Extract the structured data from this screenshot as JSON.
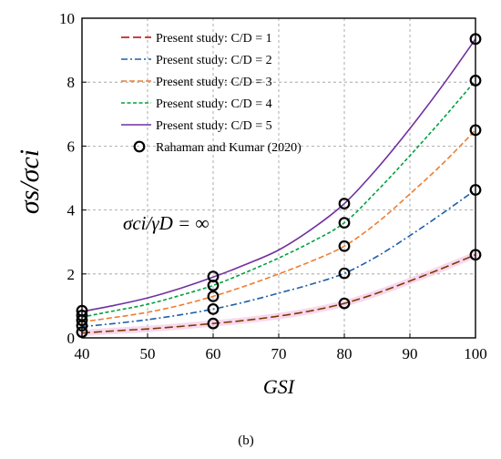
{
  "chart_data": {
    "type": "line",
    "xlabel": "GSI",
    "ylabel": "σs/σci",
    "xlim": [
      40,
      100
    ],
    "ylim": [
      0,
      10
    ],
    "xticks": [
      40,
      50,
      60,
      70,
      80,
      90,
      100
    ],
    "yticks": [
      0,
      2,
      4,
      6,
      8,
      10
    ],
    "grid": true,
    "legend_position": "top-left",
    "annotation": "σci/γD = ∞",
    "panel_label": "(b)",
    "series": [
      {
        "name": "Present study: C/D = 1",
        "color": "#c00000",
        "color2": "#7a3a00",
        "dash": "long-dash",
        "x": [
          40,
          45,
          50,
          55,
          60,
          65,
          70,
          75,
          80,
          85,
          90,
          95,
          100
        ],
        "y": [
          0.15,
          0.22,
          0.28,
          0.36,
          0.45,
          0.55,
          0.68,
          0.85,
          1.08,
          1.4,
          1.78,
          2.18,
          2.6
        ]
      },
      {
        "name": "Present study: C/D = 2",
        "color": "#1f5fa8",
        "dash": "dash-dot",
        "x": [
          40,
          45,
          50,
          55,
          60,
          65,
          70,
          75,
          80,
          85,
          90,
          95,
          100
        ],
        "y": [
          0.35,
          0.45,
          0.57,
          0.72,
          0.9,
          1.13,
          1.4,
          1.68,
          2.02,
          2.55,
          3.2,
          3.9,
          4.63
        ]
      },
      {
        "name": "Present study: C/D = 3",
        "color": "#ed7d31",
        "dash": "dash",
        "x": [
          40,
          45,
          50,
          55,
          60,
          65,
          70,
          75,
          80,
          85,
          90,
          95,
          100
        ],
        "y": [
          0.5,
          0.64,
          0.8,
          1.02,
          1.3,
          1.63,
          2.0,
          2.4,
          2.87,
          3.6,
          4.5,
          5.45,
          6.5
        ]
      },
      {
        "name": "Present study: C/D = 4",
        "color": "#00a040",
        "dash": "short-dash",
        "x": [
          40,
          45,
          50,
          55,
          60,
          65,
          70,
          75,
          80,
          85,
          90,
          95,
          100
        ],
        "y": [
          0.65,
          0.85,
          1.05,
          1.33,
          1.64,
          2.05,
          2.5,
          3.0,
          3.6,
          4.6,
          5.7,
          6.85,
          8.05
        ]
      },
      {
        "name": "Present study: C/D = 5",
        "color": "#7030a0",
        "dash": "solid",
        "x": [
          40,
          45,
          50,
          55,
          60,
          65,
          70,
          75,
          80,
          85,
          90,
          95,
          100
        ],
        "y": [
          0.82,
          1.02,
          1.25,
          1.55,
          1.9,
          2.3,
          2.75,
          3.4,
          4.2,
          5.3,
          6.55,
          7.9,
          9.35
        ]
      }
    ],
    "reference": {
      "name": "Rahaman and Kumar (2020)",
      "marker": "open-circle",
      "x": [
        40,
        40,
        40,
        40,
        40,
        60,
        60,
        60,
        60,
        60,
        80,
        80,
        80,
        80,
        80,
        100,
        100,
        100,
        100,
        100
      ],
      "y": [
        0.18,
        0.38,
        0.55,
        0.7,
        0.85,
        0.45,
        0.9,
        1.3,
        1.64,
        1.92,
        1.08,
        2.02,
        2.87,
        3.6,
        4.2,
        2.6,
        4.63,
        6.5,
        8.05,
        9.35
      ]
    }
  }
}
